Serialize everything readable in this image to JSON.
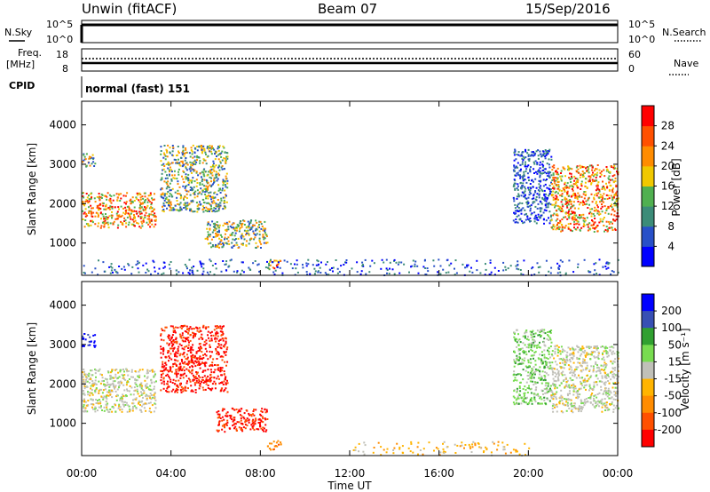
{
  "header": {
    "station": "Unwin (fitACF)",
    "beam": "Beam 07",
    "date": "15/Sep/2016"
  },
  "panels": {
    "nsky": {
      "label": "N.Sky",
      "right_label": "N.Search",
      "ticks": [
        "10^5",
        "10^0"
      ]
    },
    "freq": {
      "label_line1": "Freq.",
      "label_line2": "[MHz]",
      "left_ticks": [
        "18",
        "8"
      ],
      "right_ticks": [
        "60",
        "0"
      ],
      "right_label": "Nave"
    },
    "cpid": {
      "label": "CPID",
      "value": "normal (fast) 151"
    }
  },
  "colors": {
    "power": [
      "#0000ff",
      "#2850c8",
      "#3c8c78",
      "#50b050",
      "#f0c800",
      "#ff8c00",
      "#ff5000",
      "#ff0000"
    ],
    "velocity": [
      "#0000ff",
      "#3850b4",
      "#30a030",
      "#78dc50",
      "#c0c0b8",
      "#ffb400",
      "#ff8c00",
      "#ff5000",
      "#ff0000"
    ]
  },
  "chart_data": [
    {
      "type": "heatmap",
      "ylabel": "Slant Range [km]",
      "xlabel": "",
      "ylim": [
        180,
        4600
      ],
      "xlim": [
        0,
        24
      ],
      "x_ticks": [
        "00:00",
        "04:00",
        "08:00",
        "12:00",
        "16:00",
        "20:00",
        "00:00"
      ],
      "y_ticks": [
        1000,
        2000,
        3000,
        4000
      ],
      "colorbar": {
        "label": "Power [dB]",
        "ticks": [
          4,
          8,
          12,
          16,
          20,
          24,
          28
        ],
        "range": [
          0,
          32
        ]
      },
      "scatter_regions": [
        {
          "t": [
            0.0,
            3.3
          ],
          "range_km": [
            1400,
            2300
          ],
          "level": "high"
        },
        {
          "t": [
            0.0,
            0.6
          ],
          "range_km": [
            2950,
            3300
          ],
          "level": "medium"
        },
        {
          "t": [
            3.5,
            6.5
          ],
          "range_km": [
            1800,
            3500
          ],
          "level": "medium"
        },
        {
          "t": [
            5.5,
            8.3
          ],
          "range_km": [
            900,
            1600
          ],
          "level": "medium"
        },
        {
          "t": [
            8.3,
            8.9
          ],
          "range_km": [
            350,
            600
          ],
          "level": "high"
        },
        {
          "t": [
            19.3,
            21.0
          ],
          "range_km": [
            1500,
            3400
          ],
          "level": "low"
        },
        {
          "t": [
            21.0,
            24.0
          ],
          "range_km": [
            1300,
            3000
          ],
          "level": "high"
        },
        {
          "t": [
            0.0,
            24.0
          ],
          "range_km": [
            200,
            600
          ],
          "level": "low"
        }
      ]
    },
    {
      "type": "heatmap",
      "ylabel": "Slant Range [km]",
      "xlabel": "Time UT",
      "ylim": [
        180,
        4600
      ],
      "xlim": [
        0,
        24
      ],
      "x_ticks": [
        "00:00",
        "04:00",
        "08:00",
        "12:00",
        "16:00",
        "20:00",
        "00:00"
      ],
      "y_ticks": [
        1000,
        2000,
        3000,
        4000
      ],
      "colorbar": {
        "label": "Velocity [m s⁻¹]",
        "ticks": [
          "200",
          "100",
          "50",
          "15",
          "-15",
          "-50",
          "-100",
          "-200"
        ]
      },
      "scatter_regions": [
        {
          "t": [
            0.0,
            3.3
          ],
          "range_km": [
            1300,
            2400
          ],
          "level": "zero"
        },
        {
          "t": [
            0.0,
            0.6
          ],
          "range_km": [
            2950,
            3300
          ],
          "level": "pos_high"
        },
        {
          "t": [
            3.5,
            6.5
          ],
          "range_km": [
            1800,
            3500
          ],
          "level": "neg_high"
        },
        {
          "t": [
            6.0,
            8.3
          ],
          "range_km": [
            800,
            1400
          ],
          "level": "neg_high"
        },
        {
          "t": [
            8.3,
            8.9
          ],
          "range_km": [
            350,
            600
          ],
          "level": "neg_mid"
        },
        {
          "t": [
            19.3,
            21.0
          ],
          "range_km": [
            1500,
            3400
          ],
          "level": "pos_low"
        },
        {
          "t": [
            21.0,
            24.0
          ],
          "range_km": [
            1300,
            3000
          ],
          "level": "zero"
        },
        {
          "t": [
            12.0,
            20.0
          ],
          "range_km": [
            200,
            550
          ],
          "level": "neg_low"
        }
      ]
    }
  ]
}
